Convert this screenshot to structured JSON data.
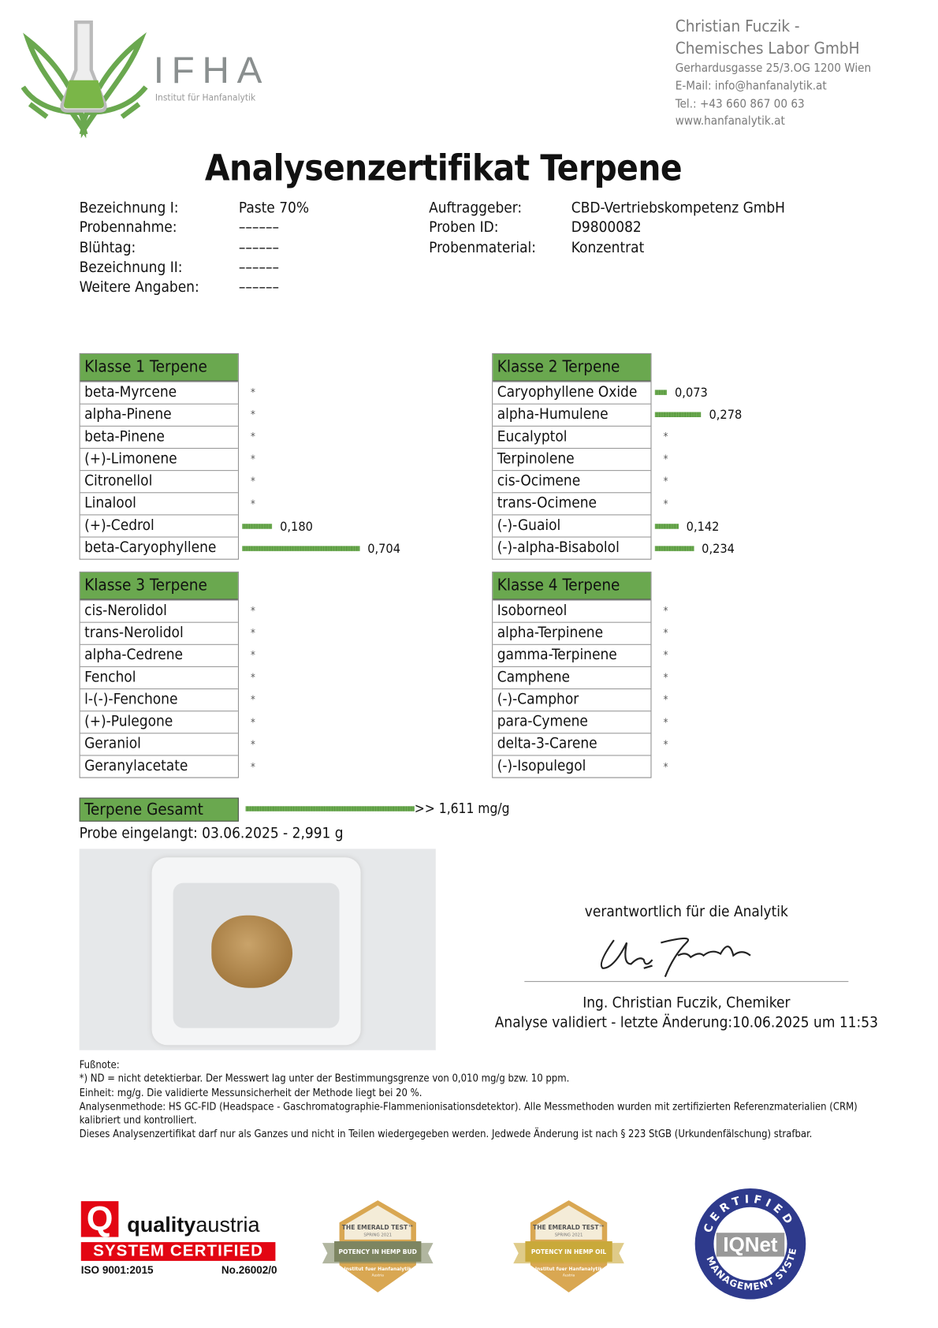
{
  "logo": {
    "abbr": "IFHA",
    "subtitle": "Institut für Hanfanalytik"
  },
  "company": {
    "name_line1": "Christian Fuczik -",
    "name_line2": "Chemisches Labor GmbH",
    "address": "Gerhardusgasse 25/3.OG 1200 Wien",
    "email": "E-Mail: info@hanfanalytik.at",
    "phone": "Tel.: +43 660 867 00 63",
    "web": "www.hanfanalytik.at"
  },
  "title": "Analysenzertifikat Terpene",
  "info_left": [
    {
      "label": "Bezeichnung I:",
      "value": "Paste 70%"
    },
    {
      "label": "Probennahme:",
      "value": "––––––"
    },
    {
      "label": "Blühtag:",
      "value": "––––––"
    },
    {
      "label": "Bezeichnung II:",
      "value": "––––––"
    },
    {
      "label": "Weitere Angaben:",
      "value": "––––––"
    }
  ],
  "info_right": [
    {
      "label": "Auftraggeber:",
      "value": "CBD-Vertriebskompetenz GmbH"
    },
    {
      "label": "Proben ID:",
      "value": "D9800082"
    },
    {
      "label": "Probenmaterial:",
      "value": "Konzentrat"
    }
  ],
  "nd_marker": "*",
  "classes": [
    {
      "title": "Klasse 1 Terpene",
      "items": [
        {
          "name": "beta-Myrcene",
          "value": null
        },
        {
          "name": "alpha-Pinene",
          "value": null
        },
        {
          "name": "beta-Pinene",
          "value": null
        },
        {
          "name": "(+)-Limonene",
          "value": null
        },
        {
          "name": "Citronellol",
          "value": null
        },
        {
          "name": "Linalool",
          "value": null
        },
        {
          "name": "(+)-Cedrol",
          "value": 0.18,
          "label": "0,180"
        },
        {
          "name": "beta-Caryophyllene",
          "value": 0.704,
          "label": "0,704"
        }
      ]
    },
    {
      "title": "Klasse 2 Terpene",
      "items": [
        {
          "name": "Caryophyllene Oxide",
          "value": 0.073,
          "label": "0,073"
        },
        {
          "name": "alpha-Humulene",
          "value": 0.278,
          "label": "0,278"
        },
        {
          "name": "Eucalyptol",
          "value": null
        },
        {
          "name": "Terpinolene",
          "value": null
        },
        {
          "name": "cis-Ocimene",
          "value": null
        },
        {
          "name": "trans-Ocimene",
          "value": null
        },
        {
          "name": "(-)-Guaiol",
          "value": 0.142,
          "label": "0,142"
        },
        {
          "name": "(-)-alpha-Bisabolol",
          "value": 0.234,
          "label": "0,234"
        }
      ]
    },
    {
      "title": "Klasse 3 Terpene",
      "items": [
        {
          "name": "cis-Nerolidol",
          "value": null
        },
        {
          "name": "trans-Nerolidol",
          "value": null
        },
        {
          "name": "alpha-Cedrene",
          "value": null
        },
        {
          "name": "Fenchol",
          "value": null
        },
        {
          "name": "l-(-)-Fenchone",
          "value": null
        },
        {
          "name": "(+)-Pulegone",
          "value": null
        },
        {
          "name": "Geraniol",
          "value": null
        },
        {
          "name": "Geranylacetate",
          "value": null
        }
      ]
    },
    {
      "title": "Klasse 4 Terpene",
      "items": [
        {
          "name": "Isoborneol",
          "value": null
        },
        {
          "name": "alpha-Terpinene",
          "value": null
        },
        {
          "name": "gamma-Terpinene",
          "value": null
        },
        {
          "name": "Camphene",
          "value": null
        },
        {
          "name": "(-)-Camphor",
          "value": null
        },
        {
          "name": "para-Cymene",
          "value": null
        },
        {
          "name": "delta-3-Carene",
          "value": null
        },
        {
          "name": "(-)-Isopulegol",
          "value": null
        }
      ]
    }
  ],
  "total": {
    "label": "Terpene Gesamt",
    "value": 1.611,
    "text": ">> 1,611 mg/g"
  },
  "sample_received": "Probe eingelangt: 03.06.2025 - 2,991 g",
  "signature": {
    "caption": "verantwortlich für die Analytik",
    "name": "Ing. Christian Fuczik, Chemiker",
    "validated": "Analyse validiert - letzte Änderung:10.06.2025 um 11:53"
  },
  "footnote": {
    "heading": "Fußnote:",
    "lines": [
      "*) ND = nicht detektierbar. Der Messwert lag unter der Bestimmungsgrenze von 0,010 mg/g bzw. 10 ppm.",
      "Einheit: mg/g. Die validierte Messunsicherheit der Methode liegt bei 20 %.",
      "Analysenmethode: HS GC-FID (Headspace - Gaschromatographie-Flammenionisationsdetektor). Alle Messmethoden wurden mit zertifizierten Referenzmaterialien (CRM) kalibriert und kontrolliert.",
      "Dieses Analysenzertifikat darf nur als Ganzes und nicht in Teilen wiedergegeben werden. Jedwede Änderung ist nach § 223 StGB (Urkundenfälschung) strafbar."
    ]
  },
  "badges": {
    "qa": {
      "brand1": "quality",
      "brand2": "austria",
      "cert": "SYSTEM CERTIFIED",
      "iso": "ISO 9001:2015",
      "no": "No.26002/0"
    },
    "emerald1": {
      "title": "THE EMERALD TEST™",
      "season": "SPRING 2021",
      "ribbon": "POTENCY IN HEMP BUD",
      "org": "Institut fuer Hanfanalytik",
      "country": "Austria"
    },
    "emerald2": {
      "title": "THE EMERALD TEST™",
      "season": "SPRING 2021",
      "ribbon": "POTENCY IN HEMP OIL",
      "org": "Institut fuer Hanfanalytik",
      "country": "Austria"
    },
    "iqnet": {
      "top": "CERTIFIED",
      "logo": "IQNet",
      "bottom": "MANAGEMENT SYSTEM"
    }
  },
  "colors": {
    "green": "#6aa84f",
    "gray": "#7a7a7a",
    "qa_red": "#e30613",
    "iqnet_blue": "#2e3a8c"
  }
}
